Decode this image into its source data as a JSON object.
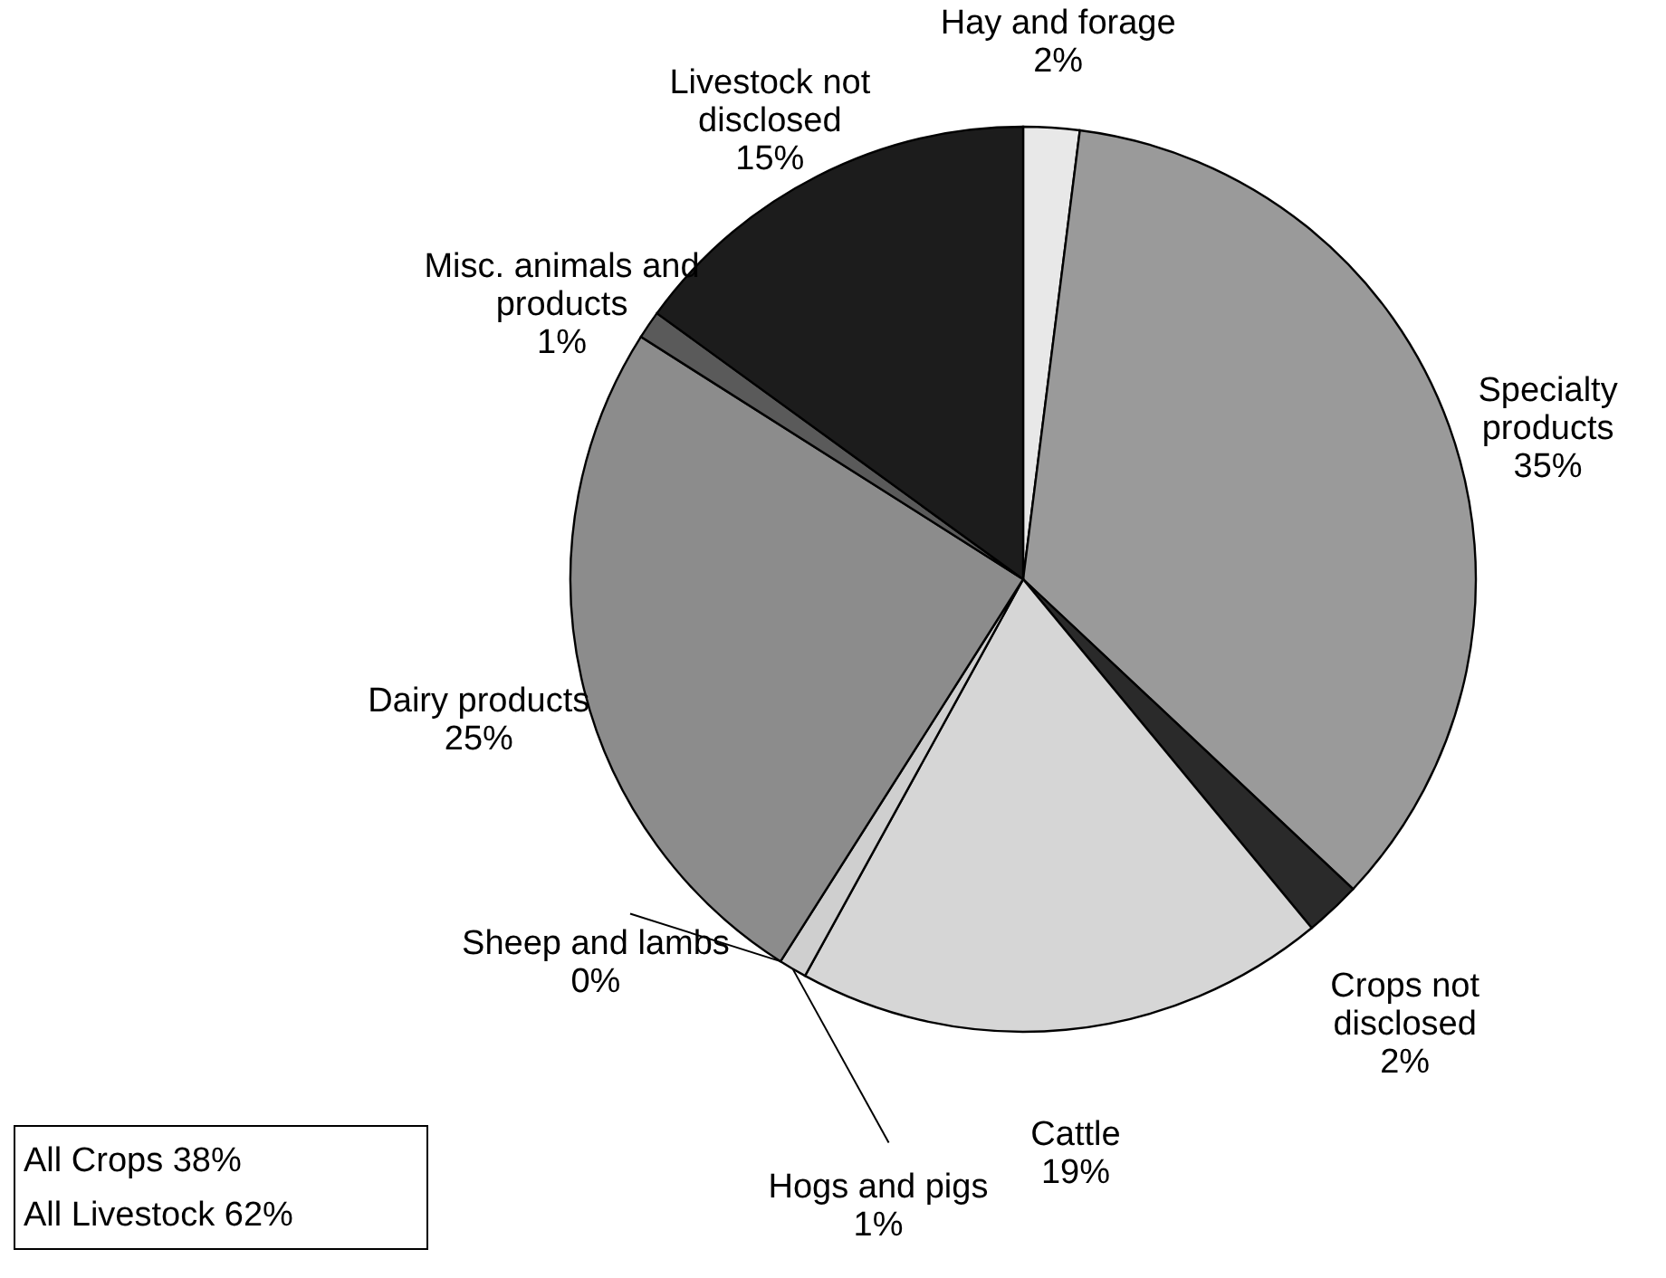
{
  "chart_data": {
    "type": "pie",
    "categories": [
      "Hay and forage",
      "Specialty products",
      "Crops not disclosed",
      "Cattle",
      "Hogs and pigs",
      "Sheep and lambs",
      "Dairy products",
      "Misc. animals and products",
      "Livestock not disclosed"
    ],
    "values": [
      2,
      35,
      2,
      19,
      1,
      0,
      25,
      1,
      15
    ],
    "colors": [
      "#e8e8e8",
      "#9a9a9a",
      "#2a2a2a",
      "#d6d6d6",
      "#cfcfcf",
      "#bdbdbd",
      "#8c8c8c",
      "#5a5a5a",
      "#1c1c1c"
    ],
    "value_labels": [
      "2%",
      "35%",
      "2%",
      "19%",
      "1%",
      "0%",
      "25%",
      "1%",
      "15%"
    ],
    "annotations": [
      "All Crops  38%",
      "All Livestock  62%"
    ]
  }
}
